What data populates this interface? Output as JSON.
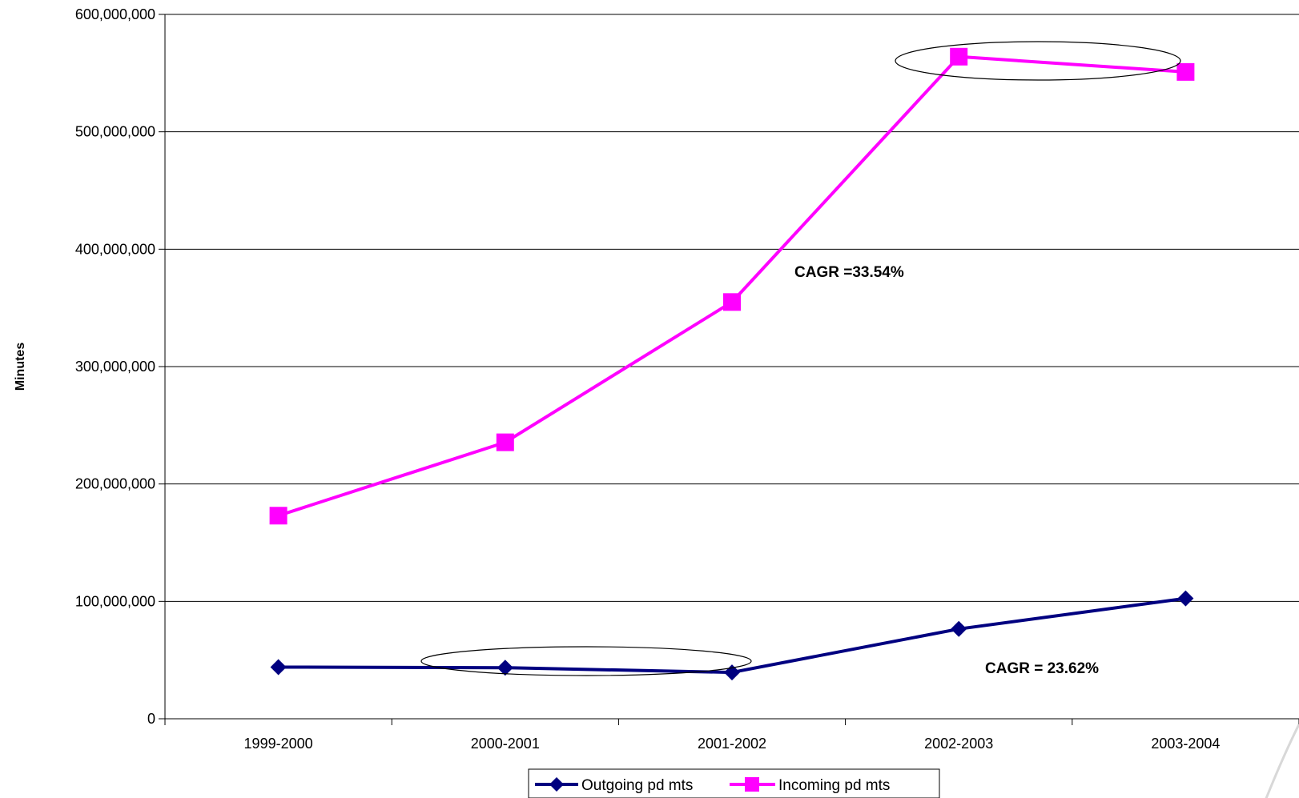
{
  "chart_data": {
    "type": "line",
    "title": "",
    "xlabel": "",
    "ylabel": "Minutes",
    "categories": [
      "1999-2000",
      "2000-2001",
      "2001-2002",
      "2002-2003",
      "2003-2004"
    ],
    "ylim": [
      0,
      600000000
    ],
    "yticks": [
      0,
      100000000,
      200000000,
      300000000,
      400000000,
      500000000,
      600000000
    ],
    "ytick_labels": [
      "0",
      "100,000,000",
      "200,000,000",
      "300,000,000",
      "400,000,000",
      "500,000,000",
      "600,000,000"
    ],
    "grid": "horizontal",
    "legend_position": "bottom",
    "series": [
      {
        "name": "Outgoing pd mts",
        "color": "#000080",
        "marker": "diamond",
        "values": [
          44000000,
          43500000,
          39500000,
          76500000,
          102500000
        ]
      },
      {
        "name": "Incoming pd mts",
        "color": "#FF00FF",
        "marker": "square",
        "values": [
          173000000,
          235500000,
          355000000,
          564000000,
          551000000
        ]
      }
    ],
    "annotations": [
      {
        "text": "CAGR =33.54%",
        "series": "Incoming pd mts"
      },
      {
        "text": "CAGR = 23.62%",
        "series": "Outgoing pd mts"
      }
    ]
  }
}
